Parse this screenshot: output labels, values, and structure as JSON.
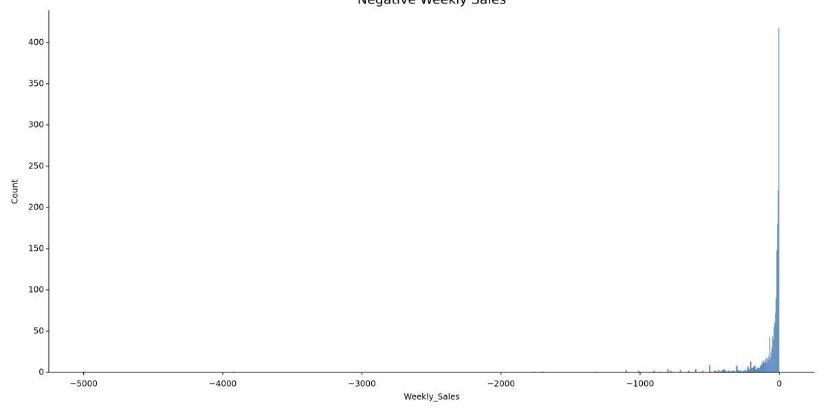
{
  "chart_data": {
    "type": "histogram",
    "title": "Negative Weekly Sales",
    "x_label": "Weekly_Sales",
    "y_label": "Count",
    "color": "#3b75af",
    "bins": [
      -5000,
      -4985,
      -3925,
      -3915,
      -1765,
      -1755,
      -1705,
      -1695,
      -1325,
      -1315,
      -1105,
      -1095,
      -1015,
      -1005,
      -905,
      -895,
      -865,
      -855,
      -805,
      -795,
      -785,
      -775,
      -715,
      -705,
      -655,
      -645,
      -605,
      -595,
      -555,
      -545,
      -505,
      -495,
      -490,
      -480,
      -470,
      -460,
      -450,
      -440,
      -430,
      -420,
      -410,
      -400,
      -390,
      -380,
      -370,
      -360,
      -350,
      -340,
      -330,
      -320,
      -310,
      -300,
      -290,
      -280,
      -270,
      -260,
      -250,
      -240,
      -230,
      -220,
      -210,
      -200,
      -190,
      -180,
      -170,
      -160,
      -150,
      -140,
      -130,
      -120,
      -110,
      -100,
      -95,
      -90,
      -85,
      -80,
      -75,
      -70,
      -65,
      -60,
      -55,
      -50,
      -45,
      -40,
      -35,
      -30,
      -25,
      -20,
      -15,
      -10,
      -5,
      0
    ],
    "counts": [
      1,
      0,
      1,
      0,
      1,
      0,
      1,
      0,
      1,
      0,
      3,
      0,
      2,
      0,
      2,
      0,
      1,
      0,
      4,
      0,
      2,
      0,
      3,
      0,
      2,
      0,
      4,
      0,
      2,
      0,
      9,
      0,
      1,
      0,
      2,
      2,
      1,
      3,
      1,
      2,
      3,
      4,
      2,
      1,
      2,
      2,
      1,
      2,
      2,
      1,
      8,
      3,
      2,
      2,
      1,
      2,
      3,
      2,
      7,
      4,
      13,
      5,
      7,
      8,
      4,
      6,
      5,
      8,
      10,
      14,
      12,
      16,
      18,
      12,
      17,
      20,
      15,
      43,
      18,
      24,
      30,
      44,
      40,
      55,
      60,
      72,
      90,
      148,
      180,
      221,
      418
    ],
    "xlim": [
      -5250,
      255
    ],
    "ylim": [
      0,
      439
    ],
    "xticks": [
      {
        "value": -5000,
        "label": "−5000"
      },
      {
        "value": -4000,
        "label": "−4000"
      },
      {
        "value": -3000,
        "label": "−3000"
      },
      {
        "value": -2000,
        "label": "−2000"
      },
      {
        "value": -1000,
        "label": "−1000"
      },
      0
    ],
    "yticks": [
      0,
      50,
      100,
      150,
      200,
      250,
      300,
      350,
      400
    ]
  }
}
